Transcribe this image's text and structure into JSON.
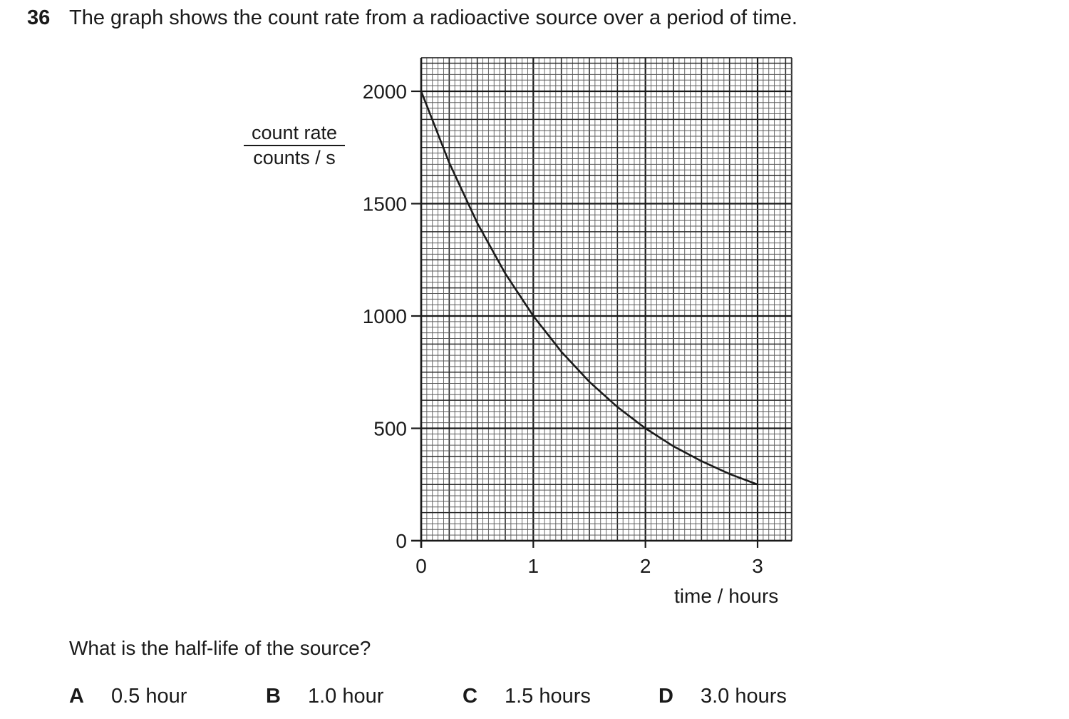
{
  "question": {
    "number": "36",
    "text": "The graph shows the count rate from a radioactive source over a period of time.",
    "prompt": "What is the half-life of the source?",
    "options": [
      {
        "letter": "A",
        "text": "0.5 hour"
      },
      {
        "letter": "B",
        "text": "1.0 hour"
      },
      {
        "letter": "C",
        "text": "1.5 hours"
      },
      {
        "letter": "D",
        "text": "3.0 hours"
      }
    ]
  },
  "chart_data": {
    "type": "line",
    "ylabel_numerator": "count rate",
    "ylabel_denominator": "counts / s",
    "xlabel": "time / hours",
    "x_ticks": [
      "0",
      "1",
      "2",
      "3"
    ],
    "y_ticks": [
      "0",
      "500",
      "1000",
      "1500",
      "2000"
    ],
    "xlim": [
      0,
      3.3
    ],
    "ylim": [
      0,
      2150
    ],
    "grid": true,
    "series": [
      {
        "x": [
          0,
          0.25,
          0.5,
          0.75,
          1,
          1.25,
          1.5,
          1.75,
          2,
          2.25,
          2.5,
          2.75,
          3
        ],
        "values": [
          2000,
          1682,
          1414,
          1189,
          1000,
          841,
          707,
          595,
          500,
          420,
          354,
          297,
          250
        ]
      }
    ]
  }
}
